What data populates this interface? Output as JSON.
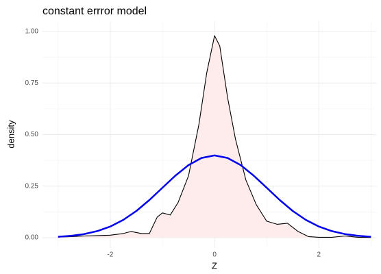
{
  "chart_data": {
    "type": "density",
    "title": "constant errror model",
    "xlabel": "Z",
    "ylabel": "density",
    "xlim": [
      -3.3,
      3.1
    ],
    "ylim": [
      -0.05,
      1.05
    ],
    "xticks": [
      -2,
      0,
      2
    ],
    "yticks": [
      {
        "value": 0,
        "label": "0.00"
      },
      0.25,
      {
        "value": 0.5,
        "label": "0.50"
      },
      0.75,
      {
        "value": 1,
        "label": "1.00"
      }
    ],
    "x_minor_ticks": [
      -3,
      -1,
      1,
      3
    ],
    "y_minor_ticks": [
      0.125,
      0.375,
      0.625,
      0.875
    ],
    "grid": true,
    "series": [
      {
        "color": "#000000",
        "fill": "#fdeceb",
        "x": [
          -3,
          -2.75,
          -2.5,
          -2.25,
          -2,
          -1.75,
          -1.6,
          -1.4,
          -1.25,
          -1.1,
          -1,
          -0.85,
          -0.7,
          -0.5,
          -0.3,
          -0.15,
          0,
          0.1,
          0.25,
          0.4,
          0.6,
          0.8,
          1,
          1.2,
          1.4,
          1.6,
          1.8,
          2,
          2.25,
          2.5,
          2.75,
          3
        ],
        "values": [
          0.003,
          0.005,
          0.008,
          0.01,
          0.012,
          0.02,
          0.03,
          0.02,
          0.02,
          0.1,
          0.12,
          0.11,
          0.17,
          0.3,
          0.55,
          0.8,
          0.98,
          0.93,
          0.68,
          0.48,
          0.28,
          0.16,
          0.08,
          0.065,
          0.07,
          0.03,
          0.005,
          0.002,
          0.002,
          0.008,
          0.002,
          0.001
        ]
      },
      {
        "color": "#0000ee",
        "x": [
          -3,
          -2.75,
          -2.5,
          -2.25,
          -2,
          -1.75,
          -1.5,
          -1.25,
          -1,
          -0.75,
          -0.5,
          -0.25,
          0,
          0.25,
          0.5,
          0.75,
          1,
          1.25,
          1.5,
          1.75,
          2,
          2.25,
          2.5,
          2.75,
          3
        ],
        "values": [
          0.0044,
          0.0091,
          0.0175,
          0.0317,
          0.054,
          0.0863,
          0.1295,
          0.1826,
          0.242,
          0.3011,
          0.3521,
          0.3867,
          0.3989,
          0.3867,
          0.3521,
          0.3011,
          0.242,
          0.1826,
          0.1295,
          0.0863,
          0.054,
          0.0317,
          0.0175,
          0.0091,
          0.0044
        ]
      }
    ]
  }
}
